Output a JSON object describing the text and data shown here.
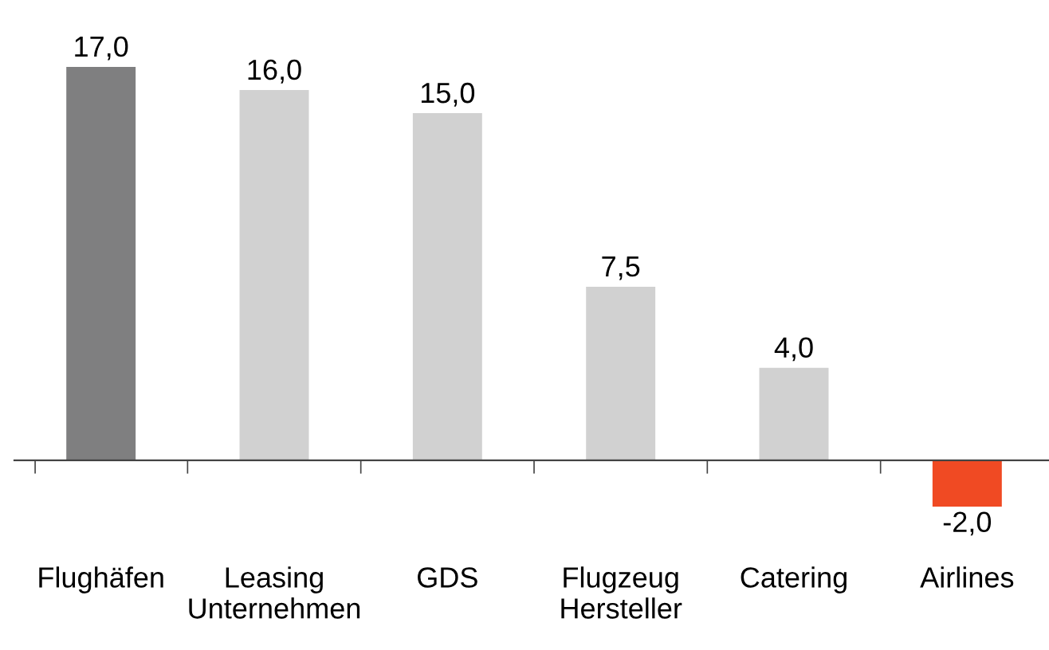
{
  "chart_data": {
    "type": "bar",
    "categories": [
      "Flughäfen",
      "Leasing\nUnternehmen",
      "GDS",
      "Flugzeug\nHersteller",
      "Catering",
      "Airlines"
    ],
    "values": [
      17.0,
      16.0,
      15.0,
      7.5,
      4.0,
      -2.0
    ],
    "colors": [
      "#7f7f80",
      "#d1d1d1",
      "#d1d1d1",
      "#d1d1d1",
      "#d1d1d1",
      "#f04a23"
    ],
    "value_labels": [
      "17,0",
      "16,0",
      "15,0",
      "7,5",
      "4,0",
      "-2,0"
    ],
    "grid": false,
    "legend": false
  }
}
